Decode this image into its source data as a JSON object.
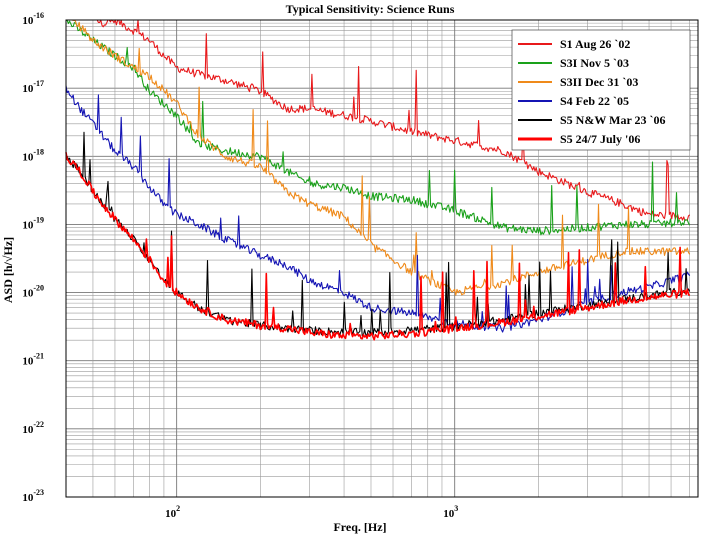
{
  "chart_data": {
    "type": "line",
    "title": "Typical Sensitivity: Science Runs",
    "xlabel": "Freq. [Hz]",
    "ylabel": "ASD [h/√Hz]",
    "x_scale": "log",
    "y_scale": "log",
    "xlim": [
      40,
      7500
    ],
    "ylim": [
      1e-23,
      1e-16
    ],
    "x_tick_labels": [
      {
        "value": 100,
        "base": "10",
        "exp": "2"
      },
      {
        "value": 1000,
        "base": "10",
        "exp": "3"
      }
    ],
    "y_tick_labels": [
      {
        "value": 1e-16,
        "base": "10",
        "exp": "-16"
      },
      {
        "value": 1e-17,
        "base": "10",
        "exp": "-17"
      },
      {
        "value": 1e-18,
        "base": "10",
        "exp": "-18"
      },
      {
        "value": 1e-19,
        "base": "10",
        "exp": "-19"
      },
      {
        "value": 1e-20,
        "base": "10",
        "exp": "-20"
      },
      {
        "value": 1e-21,
        "base": "10",
        "exp": "-21"
      },
      {
        "value": 1e-22,
        "base": "10",
        "exp": "-22"
      },
      {
        "value": 1e-23,
        "base": "10",
        "exp": "-23"
      }
    ],
    "grid": true,
    "legend_position": "top-right",
    "series": [
      {
        "name": "S1 Aug 26 `02",
        "color": "#e8191b",
        "x": [
          40,
          45,
          50,
          55,
          60,
          70,
          80,
          90,
          100,
          120,
          150,
          200,
          250,
          300,
          400,
          500,
          700,
          1000,
          1500,
          2000,
          3000,
          4000,
          5000,
          7000
        ],
        "y": [
          1.6e-16,
          1.2e-16,
          1e-16,
          9e-17,
          1e-16,
          7e-17,
          5e-17,
          3e-17,
          2e-17,
          1.6e-17,
          1.3e-17,
          9e-18,
          5e-18,
          5e-18,
          4e-18,
          3.3e-18,
          2.3e-18,
          1.7e-18,
          1.2e-18,
          6e-19,
          3e-19,
          2e-19,
          1.4e-19,
          1.3e-19
        ]
      },
      {
        "name": "S3I Nov 5 `03",
        "color": "#1aa11a",
        "x": [
          40,
          45,
          50,
          60,
          70,
          80,
          100,
          120,
          150,
          200,
          250,
          300,
          400,
          500,
          700,
          1000,
          1500,
          2000,
          3000,
          4000,
          5000,
          7000
        ],
        "y": [
          1e-16,
          7e-17,
          5e-17,
          3e-17,
          2e-17,
          9e-18,
          4e-18,
          1.5e-18,
          1.2e-18,
          1e-18,
          6e-19,
          4e-19,
          3.5e-19,
          2.6e-19,
          2.3e-19,
          1.6e-19,
          9e-20,
          8e-20,
          9e-20,
          1e-19,
          1e-19,
          1.1e-19
        ]
      },
      {
        "name": "S3II Dec 31 `03",
        "color": "#ef8a1a",
        "x": [
          40,
          45,
          50,
          60,
          70,
          80,
          100,
          120,
          150,
          200,
          250,
          300,
          400,
          500,
          700,
          1000,
          1500,
          2000,
          3000,
          4000,
          5000,
          7000
        ],
        "y": [
          1.2e-16,
          8e-17,
          5e-17,
          3e-17,
          2e-17,
          1.5e-17,
          6e-18,
          2e-18,
          1e-18,
          7e-19,
          3e-19,
          2e-19,
          1.3e-19,
          5e-20,
          2e-20,
          1e-20,
          1.4e-20,
          2e-20,
          3e-20,
          4e-20,
          4e-20,
          4e-20
        ]
      },
      {
        "name": "S4 Feb 22 `05",
        "color": "#1414b4",
        "x": [
          40,
          45,
          50,
          60,
          70,
          80,
          90,
          100,
          120,
          150,
          200,
          250,
          300,
          400,
          500,
          700,
          1000,
          1500,
          2000,
          3000,
          4000,
          5000,
          6000,
          7000
        ],
        "y": [
          1e-17,
          5e-18,
          3e-18,
          1.2e-18,
          7e-19,
          3.5e-19,
          2e-19,
          1.4e-19,
          1e-19,
          6e-20,
          3.5e-20,
          2.5e-20,
          1.5e-20,
          1e-20,
          6e-21,
          5e-21,
          3.5e-21,
          3e-21,
          4e-21,
          7e-21,
          1e-20,
          1.2e-20,
          1.5e-20,
          1.8e-20
        ]
      },
      {
        "name": "S5 N&W Mar 23 `06",
        "color": "#000000",
        "x": [
          40,
          45,
          50,
          60,
          70,
          80,
          90,
          100,
          120,
          150,
          200,
          250,
          300,
          400,
          500,
          700,
          1000,
          1500,
          2000,
          3000,
          4000,
          5000,
          7000
        ],
        "y": [
          1e-18,
          6e-19,
          3e-19,
          1.2e-19,
          6e-20,
          3e-20,
          1.5e-20,
          1e-20,
          6e-21,
          4e-21,
          3.3e-21,
          3e-21,
          2.8e-21,
          2.6e-21,
          2.6e-21,
          2.8e-21,
          3.2e-21,
          4e-21,
          5e-21,
          6.5e-21,
          8e-21,
          9e-21,
          1.1e-20
        ]
      },
      {
        "name": "S5 24/7 July '06",
        "color": "#ff0000",
        "x": [
          40,
          45,
          50,
          60,
          70,
          80,
          90,
          100,
          120,
          150,
          200,
          250,
          300,
          400,
          500,
          700,
          1000,
          1500,
          2000,
          3000,
          4000,
          5000,
          7000
        ],
        "y": [
          1e-18,
          6e-19,
          3e-19,
          1.2e-19,
          6e-20,
          3e-20,
          1.5e-20,
          1e-20,
          6e-21,
          4e-21,
          3.3e-21,
          3e-21,
          2.6e-21,
          2.3e-21,
          2.3e-21,
          2.5e-21,
          3e-21,
          3.7e-21,
          4.5e-21,
          6e-21,
          7.5e-21,
          8.5e-21,
          1e-20
        ]
      }
    ],
    "lines_annotations": [
      {
        "series": "S4 Feb 22 `05",
        "x": 5500,
        "y": 1.8e-20,
        "note": "peak"
      }
    ]
  }
}
